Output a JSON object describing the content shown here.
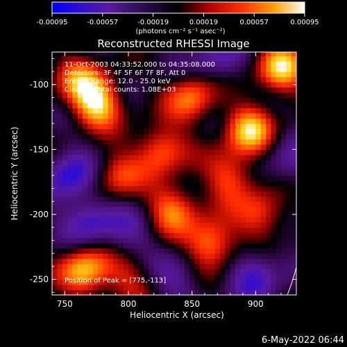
{
  "chart_data": {
    "type": "heatmap",
    "title": "Reconstructed RHESSI Image",
    "xlabel": "Heliocentric X (arcsec)",
    "ylabel": "Heliocentric Y (arcsec)",
    "xlim": [
      740,
      932
    ],
    "ylim": [
      -262,
      -75
    ],
    "x_ticks": [
      "750",
      "800",
      "850",
      "900"
    ],
    "y_ticks": [
      "-100",
      "-150",
      "-200",
      "-250"
    ],
    "colorbar": {
      "ticks": [
        "-0.00095",
        "-0.00057",
        "-0.00019",
        "0.00019",
        "0.00057",
        "0.00095"
      ],
      "unit_label": "(photons cm⁻² s⁻¹ asec⁻²)",
      "range": [
        -0.00095,
        0.00095
      ]
    },
    "annotations": [
      "11-Oct-2003 04:33:52.000 to 04:35:08.000",
      "Detectors: 3F 4F 5F 6F 7F 8F, Att 0",
      "Energy Range: 12.0 - 25.0 keV",
      "Clean     Total counts: 1.08E+03"
    ],
    "peak_label": "Position of Peak = [775,-113]",
    "peaks": [
      {
        "x": 775,
        "y": -113,
        "v": 1.0
      },
      {
        "x": 766,
        "y": -243,
        "v": 0.9
      },
      {
        "x": 920,
        "y": -88,
        "v": 0.9
      },
      {
        "x": 895,
        "y": -135,
        "v": 0.85
      },
      {
        "x": 865,
        "y": -222,
        "v": 0.8
      },
      {
        "x": 790,
        "y": -170,
        "v": 0.55
      },
      {
        "x": 825,
        "y": -150,
        "v": 0.7
      },
      {
        "x": 850,
        "y": -110,
        "v": 0.7
      },
      {
        "x": 835,
        "y": -195,
        "v": 0.7
      },
      {
        "x": 880,
        "y": -170,
        "v": 0.6
      },
      {
        "x": 905,
        "y": -200,
        "v": 0.6
      },
      {
        "x": 800,
        "y": -250,
        "v": 0.4
      },
      {
        "x": 760,
        "y": -95,
        "v": 0.5
      }
    ],
    "valleys": [
      {
        "x": 755,
        "y": -170,
        "v": -0.6
      },
      {
        "x": 770,
        "y": -205,
        "v": -0.5
      },
      {
        "x": 800,
        "y": -215,
        "v": -0.3
      },
      {
        "x": 870,
        "y": -80,
        "v": -0.4
      },
      {
        "x": 900,
        "y": -245,
        "v": -0.5
      },
      {
        "x": 840,
        "y": -250,
        "v": -0.3
      },
      {
        "x": 925,
        "y": -160,
        "v": -0.3
      }
    ]
  },
  "footer": {
    "date": "6-May-2022 06:44"
  }
}
